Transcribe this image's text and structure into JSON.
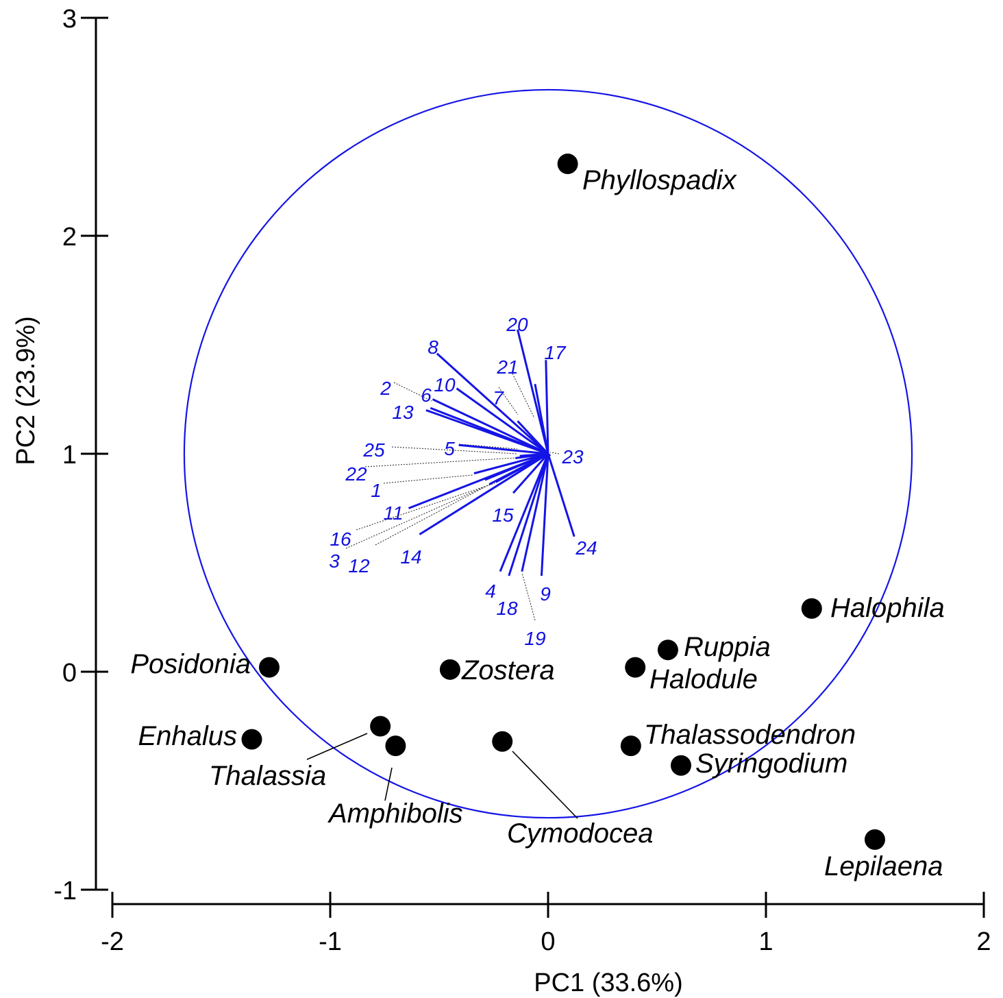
{
  "chart_data": {
    "type": "scatter",
    "title": "",
    "xlabel": "PC1 (33.6%)",
    "ylabel": "PC2 (23.9%)",
    "xlim": [
      -2,
      2
    ],
    "ylim": [
      -1,
      3
    ],
    "xticks": [
      "-2",
      "-1",
      "0",
      "1",
      "2"
    ],
    "yticks": [
      "-1",
      "0",
      "1",
      "2",
      "3"
    ],
    "grid": false,
    "colors": {
      "points": "#000000",
      "vectors": "#1414e6",
      "circle": "#1414e6"
    },
    "circle": {
      "center": [
        0,
        1
      ],
      "radius": 1.67
    },
    "points": [
      {
        "name": "Phyllospadix",
        "x": 0.09,
        "y": 2.33
      },
      {
        "name": "Halophila",
        "x": 1.21,
        "y": 0.29
      },
      {
        "name": "Ruppia",
        "x": 0.55,
        "y": 0.1
      },
      {
        "name": "Halodule",
        "x": 0.4,
        "y": 0.02
      },
      {
        "name": "Posidonia",
        "x": -1.28,
        "y": 0.02
      },
      {
        "name": "Zostera",
        "x": -0.45,
        "y": 0.01
      },
      {
        "name": "Enhalus",
        "x": -1.36,
        "y": -0.31
      },
      {
        "name": "Thalassia",
        "x": -0.77,
        "y": -0.25
      },
      {
        "name": "Amphibolis",
        "x": -0.7,
        "y": -0.34
      },
      {
        "name": "Cymodocea",
        "x": -0.21,
        "y": -0.32
      },
      {
        "name": "Thalassodendron",
        "x": 0.38,
        "y": -0.34
      },
      {
        "name": "Syringodium",
        "x": 0.61,
        "y": -0.43
      },
      {
        "name": "Lepilaena",
        "x": 1.5,
        "y": -0.77
      }
    ],
    "vectors": [
      {
        "id": "1",
        "x": -0.34,
        "y": 0.91,
        "style": "solid"
      },
      {
        "id": "2",
        "x": -0.54,
        "y": 1.21,
        "style": "solid"
      },
      {
        "id": "3",
        "x": -0.29,
        "y": 0.88,
        "style": "solid"
      },
      {
        "id": "4",
        "x": -0.22,
        "y": 0.46,
        "style": "solid"
      },
      {
        "id": "5",
        "x": -0.41,
        "y": 1.04,
        "style": "solid"
      },
      {
        "id": "6",
        "x": -0.53,
        "y": 1.25,
        "style": "solid"
      },
      {
        "id": "7",
        "x": -0.14,
        "y": 1.15,
        "style": "solid"
      },
      {
        "id": "8",
        "x": -0.51,
        "y": 1.46,
        "style": "solid"
      },
      {
        "id": "9",
        "x": -0.03,
        "y": 0.44,
        "style": "solid"
      },
      {
        "id": "10",
        "x": -0.42,
        "y": 1.3,
        "style": "solid"
      },
      {
        "id": "11",
        "x": -0.64,
        "y": 0.75,
        "style": "solid"
      },
      {
        "id": "12",
        "x": -0.27,
        "y": 0.86,
        "style": "solid"
      },
      {
        "id": "13",
        "x": -0.56,
        "y": 1.2,
        "style": "solid"
      },
      {
        "id": "14",
        "x": -0.59,
        "y": 0.63,
        "style": "solid"
      },
      {
        "id": "15",
        "x": -0.16,
        "y": 0.82,
        "style": "solid"
      },
      {
        "id": "16",
        "x": -0.24,
        "y": 0.87,
        "style": "solid"
      },
      {
        "id": "17",
        "x": -0.01,
        "y": 1.43,
        "style": "solid"
      },
      {
        "id": "18",
        "x": -0.18,
        "y": 0.44,
        "style": "solid"
      },
      {
        "id": "19",
        "x": -0.12,
        "y": 0.46,
        "style": "solid"
      },
      {
        "id": "20",
        "x": -0.14,
        "y": 1.57,
        "style": "solid"
      },
      {
        "id": "21",
        "x": -0.06,
        "y": 1.32,
        "style": "solid"
      },
      {
        "id": "22",
        "x": -0.15,
        "y": 0.98,
        "style": "solid"
      },
      {
        "id": "23",
        "x": 0.01,
        "y": 0.99,
        "style": "solid"
      },
      {
        "id": "24",
        "x": 0.12,
        "y": 0.62,
        "style": "solid"
      },
      {
        "id": "25",
        "x": -0.13,
        "y": 0.99,
        "style": "solid"
      }
    ]
  }
}
